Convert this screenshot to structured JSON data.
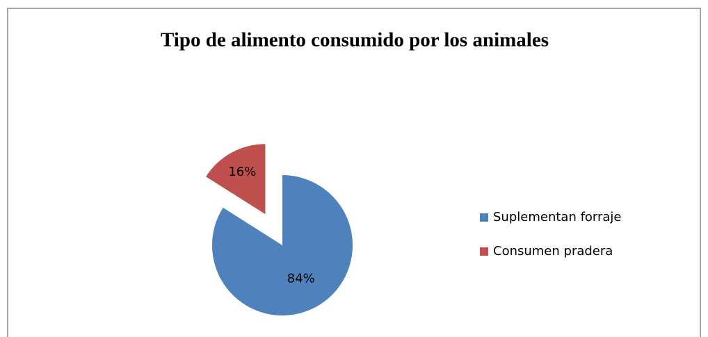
{
  "chart_data": {
    "type": "pie",
    "title": "Tipo de alimento consumido por los animales",
    "categories": [
      "Suplementan forraje",
      "Consumen pradera"
    ],
    "values": [
      84,
      16
    ],
    "value_labels": [
      "84%",
      "16%"
    ],
    "colors": [
      "#4f81bd",
      "#c0504d"
    ],
    "exploded": [
      false,
      true
    ],
    "legend": "right"
  }
}
